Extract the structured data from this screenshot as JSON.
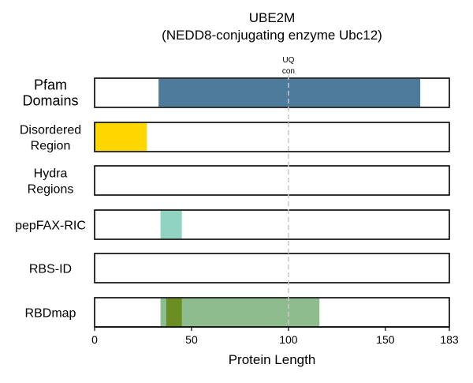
{
  "chart_data": {
    "type": "track",
    "title": "UBE2M",
    "subtitle": "(NEDD8-conjugating enzyme Ubc12)",
    "xlabel": "Protein Length",
    "xlim": [
      0,
      183
    ],
    "xticks": [
      0,
      50,
      100,
      150,
      183
    ],
    "reference_line": {
      "x": 100,
      "label_line1": "UQ",
      "label_line2": "con"
    },
    "tracks": [
      {
        "label_lines": [
          "Pfam",
          "Domains"
        ],
        "segments": [
          {
            "start": 33,
            "end": 168,
            "color": "#4e7a9b"
          }
        ]
      },
      {
        "label_lines": [
          "Disordered",
          "Region"
        ],
        "segments": [
          {
            "start": 0,
            "end": 27,
            "color": "#ffd700"
          }
        ]
      },
      {
        "label_lines": [
          "Hydra",
          "Regions"
        ],
        "segments": []
      },
      {
        "label_lines": [
          "pepFAX-RIC"
        ],
        "segments": [
          {
            "start": 34,
            "end": 45,
            "color": "#8fd3c0"
          }
        ]
      },
      {
        "label_lines": [
          "RBS-ID"
        ],
        "segments": []
      },
      {
        "label_lines": [
          "RBDmap"
        ],
        "segments": [
          {
            "start": 34,
            "end": 116,
            "color": "#8fbc8f"
          },
          {
            "start": 37,
            "end": 45,
            "color": "#6b8e23"
          }
        ]
      }
    ]
  }
}
